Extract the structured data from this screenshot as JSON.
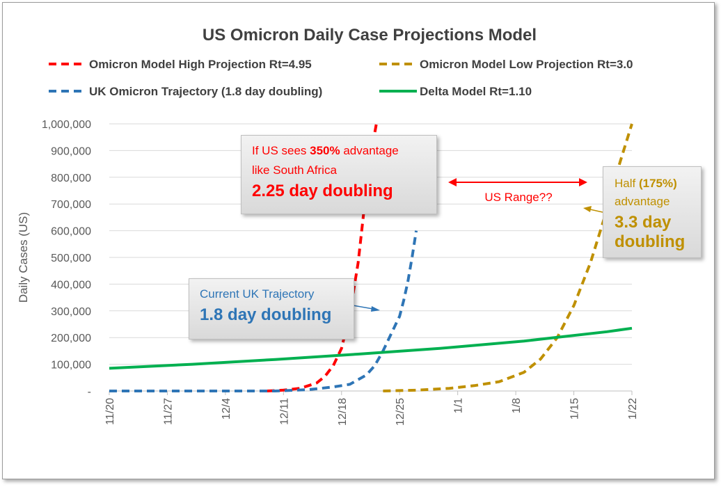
{
  "colors": {
    "high": "#ff0000",
    "low": "#bf9000",
    "uk": "#2e75b6",
    "delta": "#00b050",
    "grid": "#d9d9d9",
    "text": "#595959",
    "title": "#404040"
  },
  "chart_data": {
    "type": "line",
    "title": "US Omicron Daily Case Projections Model",
    "xlabel": "",
    "ylabel": "Daily Cases (US)",
    "ylim": [
      0,
      1000000
    ],
    "yticks": [
      0,
      100000,
      200000,
      300000,
      400000,
      500000,
      600000,
      700000,
      800000,
      900000,
      1000000
    ],
    "ytick_labels": [
      "-",
      "100,000",
      "200,000",
      "300,000",
      "400,000",
      "500,000",
      "600,000",
      "700,000",
      "800,000",
      "900,000",
      "1,000,000"
    ],
    "xlim": [
      0,
      63
    ],
    "xticks": [
      0,
      7,
      14,
      21,
      28,
      35,
      42,
      49,
      56,
      63
    ],
    "xtick_labels": [
      "11/20",
      "11/27",
      "12/4",
      "12/11",
      "12/18",
      "12/25",
      "1/1",
      "1/8",
      "1/15",
      "1/22"
    ],
    "grid": true,
    "legend_placement": "top",
    "series": [
      {
        "name": "Omicron Model High Projection Rt=4.95",
        "style": "dashed",
        "color": "#ff0000",
        "x": [
          19,
          21,
          23,
          25,
          26,
          27,
          28,
          29,
          30,
          30.5,
          31,
          31.5,
          32.2
        ],
        "y": [
          0,
          3000,
          10000,
          30000,
          55000,
          95000,
          160000,
          290000,
          480000,
          620000,
          760000,
          880000,
          1000000
        ]
      },
      {
        "name": "Omicron Model Low Projection Rt=3.0",
        "style": "dashed",
        "color": "#bf9000",
        "x": [
          33,
          37,
          41,
          44,
          47,
          50,
          52,
          54,
          56,
          58,
          60,
          61,
          62,
          63
        ],
        "y": [
          0,
          3000,
          10000,
          20000,
          35000,
          70000,
          120000,
          200000,
          320000,
          480000,
          680000,
          800000,
          900000,
          1000000
        ]
      },
      {
        "name": "UK Omicron Trajectory (1.8 day doubling)",
        "style": "dashed",
        "color": "#2e75b6",
        "x": [
          0,
          10,
          20,
          24,
          27,
          29,
          31,
          32,
          33,
          34,
          35,
          35.5,
          36,
          36.5,
          37
        ],
        "y": [
          0,
          0,
          0,
          5000,
          15000,
          25000,
          60000,
          95000,
          150000,
          215000,
          280000,
          340000,
          410000,
          500000,
          600000
        ]
      },
      {
        "name": "Delta Model Rt=1.10",
        "style": "solid",
        "color": "#00b050",
        "x": [
          0,
          10,
          20,
          30,
          40,
          50,
          60,
          63
        ],
        "y": [
          85000,
          100000,
          118000,
          138000,
          160000,
          187000,
          222000,
          235000
        ]
      }
    ],
    "annotations": {
      "range_label": "US Range??",
      "sa_line1_pre": "If US sees ",
      "sa_line1_bold": "350%",
      "sa_line1_post": " advantage",
      "sa_line2": "like South Africa",
      "sa_line3": "2.25 day doubling",
      "uk_line1": "Current UK Trajectory",
      "uk_line2": "1.8 day doubling",
      "half_line1_pre": "Half ",
      "half_line1_bold": "(175%)",
      "half_line2": "advantage",
      "half_line3": "3.3 day",
      "half_line4": "doubling"
    }
  }
}
